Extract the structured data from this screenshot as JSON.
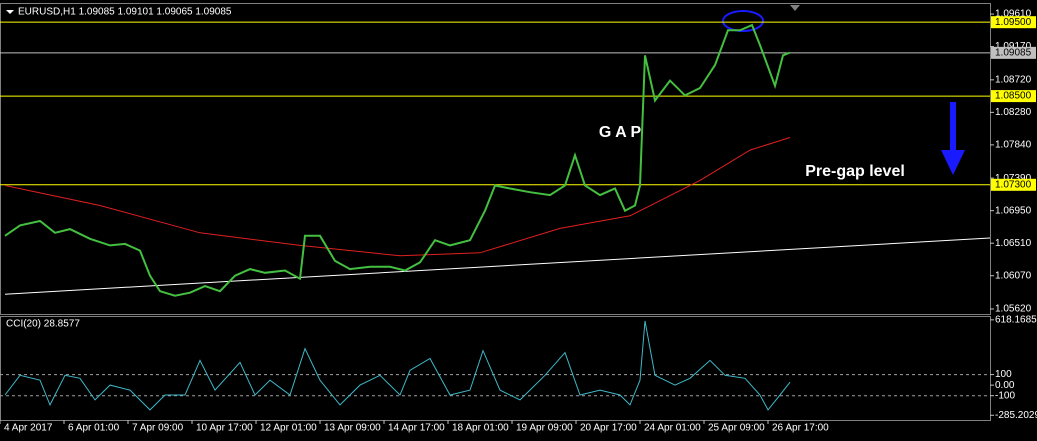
{
  "chart_data": [
    {
      "type": "line",
      "title": "EURUSD,H1  1.09085 1.09101 1.09065 1.09085",
      "xlim": [
        0,
        495
      ],
      "ylim": [
        1.05552,
        1.09746
      ],
      "yticks": [
        {
          "value": 1.0961,
          "label": "1.09610"
        },
        {
          "value": 1.0917,
          "label": "1.09170"
        },
        {
          "value": 1.0872,
          "label": "1.08720"
        },
        {
          "value": 1.0828,
          "label": "1.08280"
        },
        {
          "value": 1.0784,
          "label": "1.07840"
        },
        {
          "value": 1.0739,
          "label": "1.07390"
        },
        {
          "value": 1.0695,
          "label": "1.06950"
        },
        {
          "value": 1.0651,
          "label": "1.06510"
        },
        {
          "value": 1.0607,
          "label": "1.06070"
        },
        {
          "value": 1.0562,
          "label": "1.05620"
        }
      ],
      "hlines": [
        {
          "value": 1.095,
          "label": "1.09500",
          "color": "#ffff00"
        },
        {
          "value": 1.09085,
          "label": "1.09085",
          "color": "#c0c0c0"
        },
        {
          "value": 1.085,
          "label": "1.08500",
          "color": "#ffff00"
        },
        {
          "value": 1.073,
          "label": "1.07300",
          "color": "#ffff00"
        }
      ],
      "annotations": [
        {
          "text": "G A P"
        },
        {
          "text": "Pre-gap level"
        }
      ],
      "series": [
        {
          "color": "#ffffff",
          "x": [
            2.5,
            495
          ],
          "values": [
            1.0582,
            1.0658
          ]
        },
        {
          "color": "#e02020",
          "x": [
            2.5,
            50,
            100,
            150,
            200,
            240,
            280,
            315,
            350,
            375,
            395
          ],
          "values": [
            1.0729,
            1.0702,
            1.0665,
            1.0648,
            1.0634,
            1.0638,
            1.0671,
            1.0688,
            1.0736,
            1.0777,
            1.0794
          ]
        },
        {
          "color": "#44c040",
          "x": [
            2.5,
            10,
            20,
            27.5,
            35,
            45,
            55,
            62.5,
            70,
            75,
            80,
            87.5,
            95,
            102.5,
            110,
            117.5,
            125,
            132.5,
            142.5,
            150,
            152.5,
            160,
            167.5,
            175,
            185,
            195,
            202.5,
            210,
            217.5,
            225,
            235,
            242.5,
            247.5,
            255,
            265,
            275,
            282.5,
            287.5,
            292.5,
            300,
            307.5,
            312.5,
            317.5,
            320,
            322.5,
            327.5,
            335,
            342.5,
            350,
            357.5,
            364,
            370,
            376,
            380,
            387.5,
            391.5,
            395
          ],
          "values": [
            1.0661,
            1.0675,
            1.0681,
            1.0665,
            1.067,
            1.0657,
            1.0648,
            1.065,
            1.0641,
            1.0607,
            1.0586,
            1.058,
            1.0584,
            1.0593,
            1.0586,
            1.0607,
            1.0616,
            1.0611,
            1.0614,
            1.0603,
            1.0661,
            1.0661,
            1.0627,
            1.0616,
            1.0619,
            1.0619,
            1.0614,
            1.0625,
            1.0655,
            1.0648,
            1.0655,
            1.0695,
            1.0729,
            1.0725,
            1.072,
            1.0716,
            1.0729,
            1.077,
            1.0729,
            1.0716,
            1.0725,
            1.0695,
            1.0702,
            1.0729,
            1.0905,
            1.0844,
            1.0871,
            1.0851,
            1.0861,
            1.0892,
            1.0939,
            1.0939,
            1.0946,
            1.0919,
            1.0864,
            1.0905,
            1.0909
          ]
        }
      ]
    },
    {
      "type": "line",
      "title": "CCI(20) 28.8577",
      "xlim": [
        0,
        495
      ],
      "ylim": [
        -330,
        645
      ],
      "yticks": [
        618.1685,
        100,
        {
          "value": 0,
          "label": "0.00"
        },
        -100,
        -285.2029
      ],
      "levels": [
        100,
        -100
      ],
      "xticks": [
        {
          "value": 0,
          "label": "4 Apr 2017"
        },
        {
          "value": 32,
          "label": "6 Apr 01:00"
        },
        {
          "value": 64,
          "label": "7 Apr 09:00"
        },
        {
          "value": 96,
          "label": "10 Apr 17:00"
        },
        {
          "value": 128,
          "label": "12 Apr 01:00"
        },
        {
          "value": 160,
          "label": "13 Apr 09:00"
        },
        {
          "value": 192,
          "label": "14 Apr 17:00"
        },
        {
          "value": 224,
          "label": "18 Apr 01:00"
        },
        {
          "value": 256,
          "label": "19 Apr 09:00"
        },
        {
          "value": 288,
          "label": "20 Apr 17:00"
        },
        {
          "value": 320,
          "label": "24 Apr 01:00"
        },
        {
          "value": 352,
          "label": "25 Apr 09:00"
        },
        {
          "value": 384,
          "label": "26 Apr 17:00"
        }
      ],
      "series": [
        {
          "color": "#3fb8c8",
          "x": [
            2.5,
            10,
            20,
            25,
            32.5,
            40,
            47.5,
            55,
            65,
            75,
            82.5,
            92.5,
            100,
            107.5,
            120,
            127.5,
            135,
            145,
            152.5,
            160,
            170,
            180,
            190,
            200,
            205,
            215,
            225,
            235,
            241.5,
            250,
            260,
            272.5,
            282.5,
            290,
            300,
            310,
            315,
            320,
            322.5,
            327.5,
            337.5,
            345,
            355,
            362.5,
            372.5,
            380,
            384,
            390,
            395
          ],
          "values": [
            -93,
            93,
            47,
            -187,
            93,
            65,
            -140,
            0,
            -47,
            -234,
            -93,
            -93,
            234,
            -47,
            215,
            -93,
            47,
            -93,
            346,
            47,
            -187,
            0,
            93,
            -93,
            140,
            252,
            -93,
            -47,
            327,
            -47,
            -140,
            93,
            308,
            -93,
            -47,
            -93,
            -187,
            47,
            607,
            93,
            0,
            65,
            234,
            93,
            65,
            -93,
            -234,
            -93,
            28
          ]
        }
      ]
    }
  ]
}
